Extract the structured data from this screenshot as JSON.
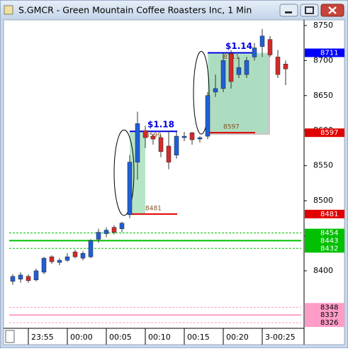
{
  "chart_data": {
    "type": "candlestick",
    "title": "S.GMCR - Green Mountain Coffee Roasters Inc, 1 Min",
    "categories": [
      null,
      null,
      "23:55",
      null,
      null,
      null,
      null,
      "00:00",
      null,
      null,
      null,
      null,
      "00:05",
      null,
      null,
      null,
      null,
      "00:10",
      null,
      null,
      null,
      null,
      "00:15",
      null,
      null,
      null,
      null,
      "00:20",
      null,
      null,
      null,
      null,
      "3-00:25",
      null,
      null,
      null
    ],
    "series": {
      "open": [
        8385,
        8388,
        8392,
        8387,
        8398,
        8420,
        8412,
        8415,
        8427,
        8418,
        8420,
        8445,
        8453,
        8462,
        8460,
        8480,
        8555,
        8600,
        8592,
        8590,
        8578,
        8565,
        8590,
        8597,
        8588,
        8592,
        8655,
        8660,
        8710,
        8680,
        8680,
        8705,
        8720,
        8730,
        8705,
        8695
      ],
      "high": [
        8395,
        8398,
        8395,
        8403,
        8420,
        8422,
        8418,
        8425,
        8430,
        8428,
        8445,
        8460,
        8462,
        8465,
        8470,
        8565,
        8627,
        8607,
        8595,
        8593,
        8600,
        8598,
        8598,
        8598,
        8592,
        8655,
        8680,
        8710,
        8715,
        8705,
        8705,
        8725,
        8745,
        8735,
        8715,
        8700
      ],
      "low": [
        8380,
        8383,
        8383,
        8385,
        8395,
        8410,
        8408,
        8413,
        8418,
        8415,
        8418,
        8440,
        8448,
        8452,
        8455,
        8475,
        8530,
        8575,
        8580,
        8562,
        8545,
        8560,
        8585,
        8580,
        8583,
        8588,
        8648,
        8655,
        8660,
        8675,
        8675,
        8700,
        8705,
        8705,
        8675,
        8665
      ],
      "close": [
        8392,
        8394,
        8386,
        8400,
        8418,
        8413,
        8415,
        8420,
        8420,
        8425,
        8443,
        8455,
        8458,
        8455,
        8468,
        8555,
        8610,
        8590,
        8588,
        8570,
        8555,
        8592,
        8592,
        8587,
        8590,
        8650,
        8660,
        8700,
        8670,
        8690,
        8700,
        8718,
        8735,
        8708,
        8680,
        8688
      ]
    },
    "up_color": "#1f5fd6",
    "down_color": "#d42a2a",
    "ylim": [
      8319,
      8758
    ],
    "yticks": [
      8400,
      8450,
      8500,
      8550,
      8600,
      8650,
      8700,
      8750
    ],
    "levels": [
      {
        "value": 8711,
        "color": "#0000ff"
      },
      {
        "value": 8597,
        "color": "#e00000"
      },
      {
        "value": 8481,
        "color": "#e00000"
      },
      {
        "value": 8454,
        "color": "#00c000",
        "line": "dashed"
      },
      {
        "value": 8443,
        "color": "#00c000",
        "line": "solid"
      },
      {
        "value": 8432,
        "color": "#00c000",
        "line": "dashed"
      },
      {
        "value": 8348,
        "color": "#ff9cc8",
        "line": "dashed"
      },
      {
        "value": 8337,
        "color": "#ff9cc8",
        "line": "solid"
      },
      {
        "value": 8326,
        "color": "#ff9cc8",
        "line": "dashed"
      }
    ],
    "trades": [
      {
        "profit": "$1.18",
        "entry": 8481,
        "exit": 8599
      },
      {
        "profit": "$1.14",
        "entry": 8597,
        "exit": 8711
      }
    ]
  }
}
